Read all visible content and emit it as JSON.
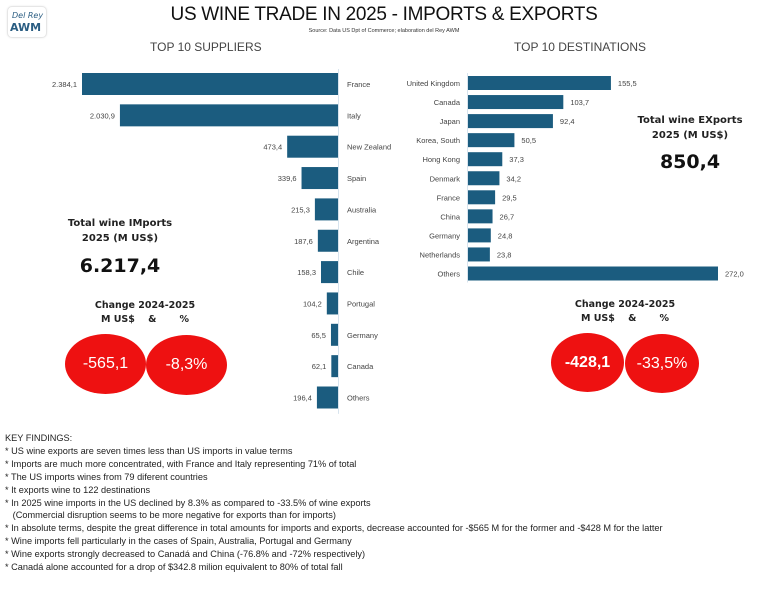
{
  "logo": {
    "top": "Del Rey",
    "main": "AWM"
  },
  "header": {
    "title": "US WINE TRADE IN 2025 - IMPORTS & EXPORTS",
    "source": "Source: Data US Dpt of Commerce; elaboration del Rey AWM"
  },
  "imports": {
    "section_title": "TOP 10 SUPPLIERS",
    "total_label_line1": "Total wine IMports",
    "total_label_line2": "2025 (M US$)",
    "total_value": "6.217,4",
    "change_label_line1": "Change 2024-2025",
    "change_label_line2": "M US$    &       %",
    "change_abs": "-565,1",
    "change_pct": "-8,3%"
  },
  "exports": {
    "section_title": "TOP 10 DESTINATIONS",
    "total_label_line1": "Total wine EXports",
    "total_label_line2": "2025 (M US$)",
    "total_value": "850,4",
    "change_label_line1": "Change 2024-2025",
    "change_label_line2": "M US$    &       %",
    "change_abs": "-428,1",
    "change_pct": "-33,5%"
  },
  "colors": {
    "bar": "#1b5c7f",
    "change_badge": "#ee1111"
  },
  "chart_data": [
    {
      "type": "bar",
      "orientation": "horizontal",
      "title": "TOP 10 SUPPLIERS",
      "direction": "right-to-left",
      "xlabel": "",
      "ylabel": "M US$",
      "categories": [
        "France",
        "Italy",
        "New Zealand",
        "Spain",
        "Australia",
        "Argentina",
        "Chile",
        "Portugal",
        "Germany",
        "Canada",
        "Others"
      ],
      "values": [
        2384.1,
        2030.9,
        473.4,
        339.6,
        215.3,
        187.6,
        158.3,
        104.2,
        65.5,
        62.1,
        196.4
      ],
      "labels": [
        "2.384,1",
        "2.030,9",
        "473,4",
        "339,6",
        "215,3",
        "187,6",
        "158,3",
        "104,2",
        "65,5",
        "62,1",
        "196,4"
      ],
      "xlim": [
        0,
        2400
      ],
      "grid": false,
      "legend": "none"
    },
    {
      "type": "bar",
      "orientation": "horizontal",
      "title": "TOP 10 DESTINATIONS",
      "direction": "left-to-right",
      "xlabel": "",
      "ylabel": "M US$",
      "categories": [
        "United Kingdom",
        "Canada",
        "Japan",
        "Korea, South",
        "Hong Kong",
        "Denmark",
        "France",
        "China",
        "Germany",
        "Netherlands",
        "Others"
      ],
      "values": [
        155.5,
        103.7,
        92.4,
        50.5,
        37.3,
        34.2,
        29.5,
        26.7,
        24.8,
        23.8,
        272.0
      ],
      "labels": [
        "155,5",
        "103,7",
        "92,4",
        "50,5",
        "37,3",
        "34,2",
        "29,5",
        "26,7",
        "24,8",
        "23,8",
        "272,0"
      ],
      "xlim": [
        0,
        272
      ],
      "grid": false,
      "legend": "none"
    }
  ],
  "findings": {
    "heading": "KEY FINDINGS:",
    "items": [
      "* US wine exports are seven times less than US imports in value terms",
      "* Imports are much more concentrated, with France and Italy representing 71% of total",
      "* The US imports wines from 79 diferent countries",
      "* It exports wine to 122 destinations",
      "* In 2025 wine imports in the US declined by 8.3% as compared to -33.5% of wine exports",
      "   (Commercial disruption seems to be more negative for exports than for imports)",
      "* In absolute terms, despite the great difference in total amounts for imports and exports, decrease accounted for -$565 M for the former and -$428 M for the latter",
      "* Wine imports fell particularly in the cases of Spain, Australia, Portugal and Germany",
      "* Wine exports strongly decreased to Canadá and China (-76.8% and -72% respectively)",
      "* Canadá alone accounted for a drop of $342.8 milion equivalent to 80% of total fall"
    ]
  }
}
